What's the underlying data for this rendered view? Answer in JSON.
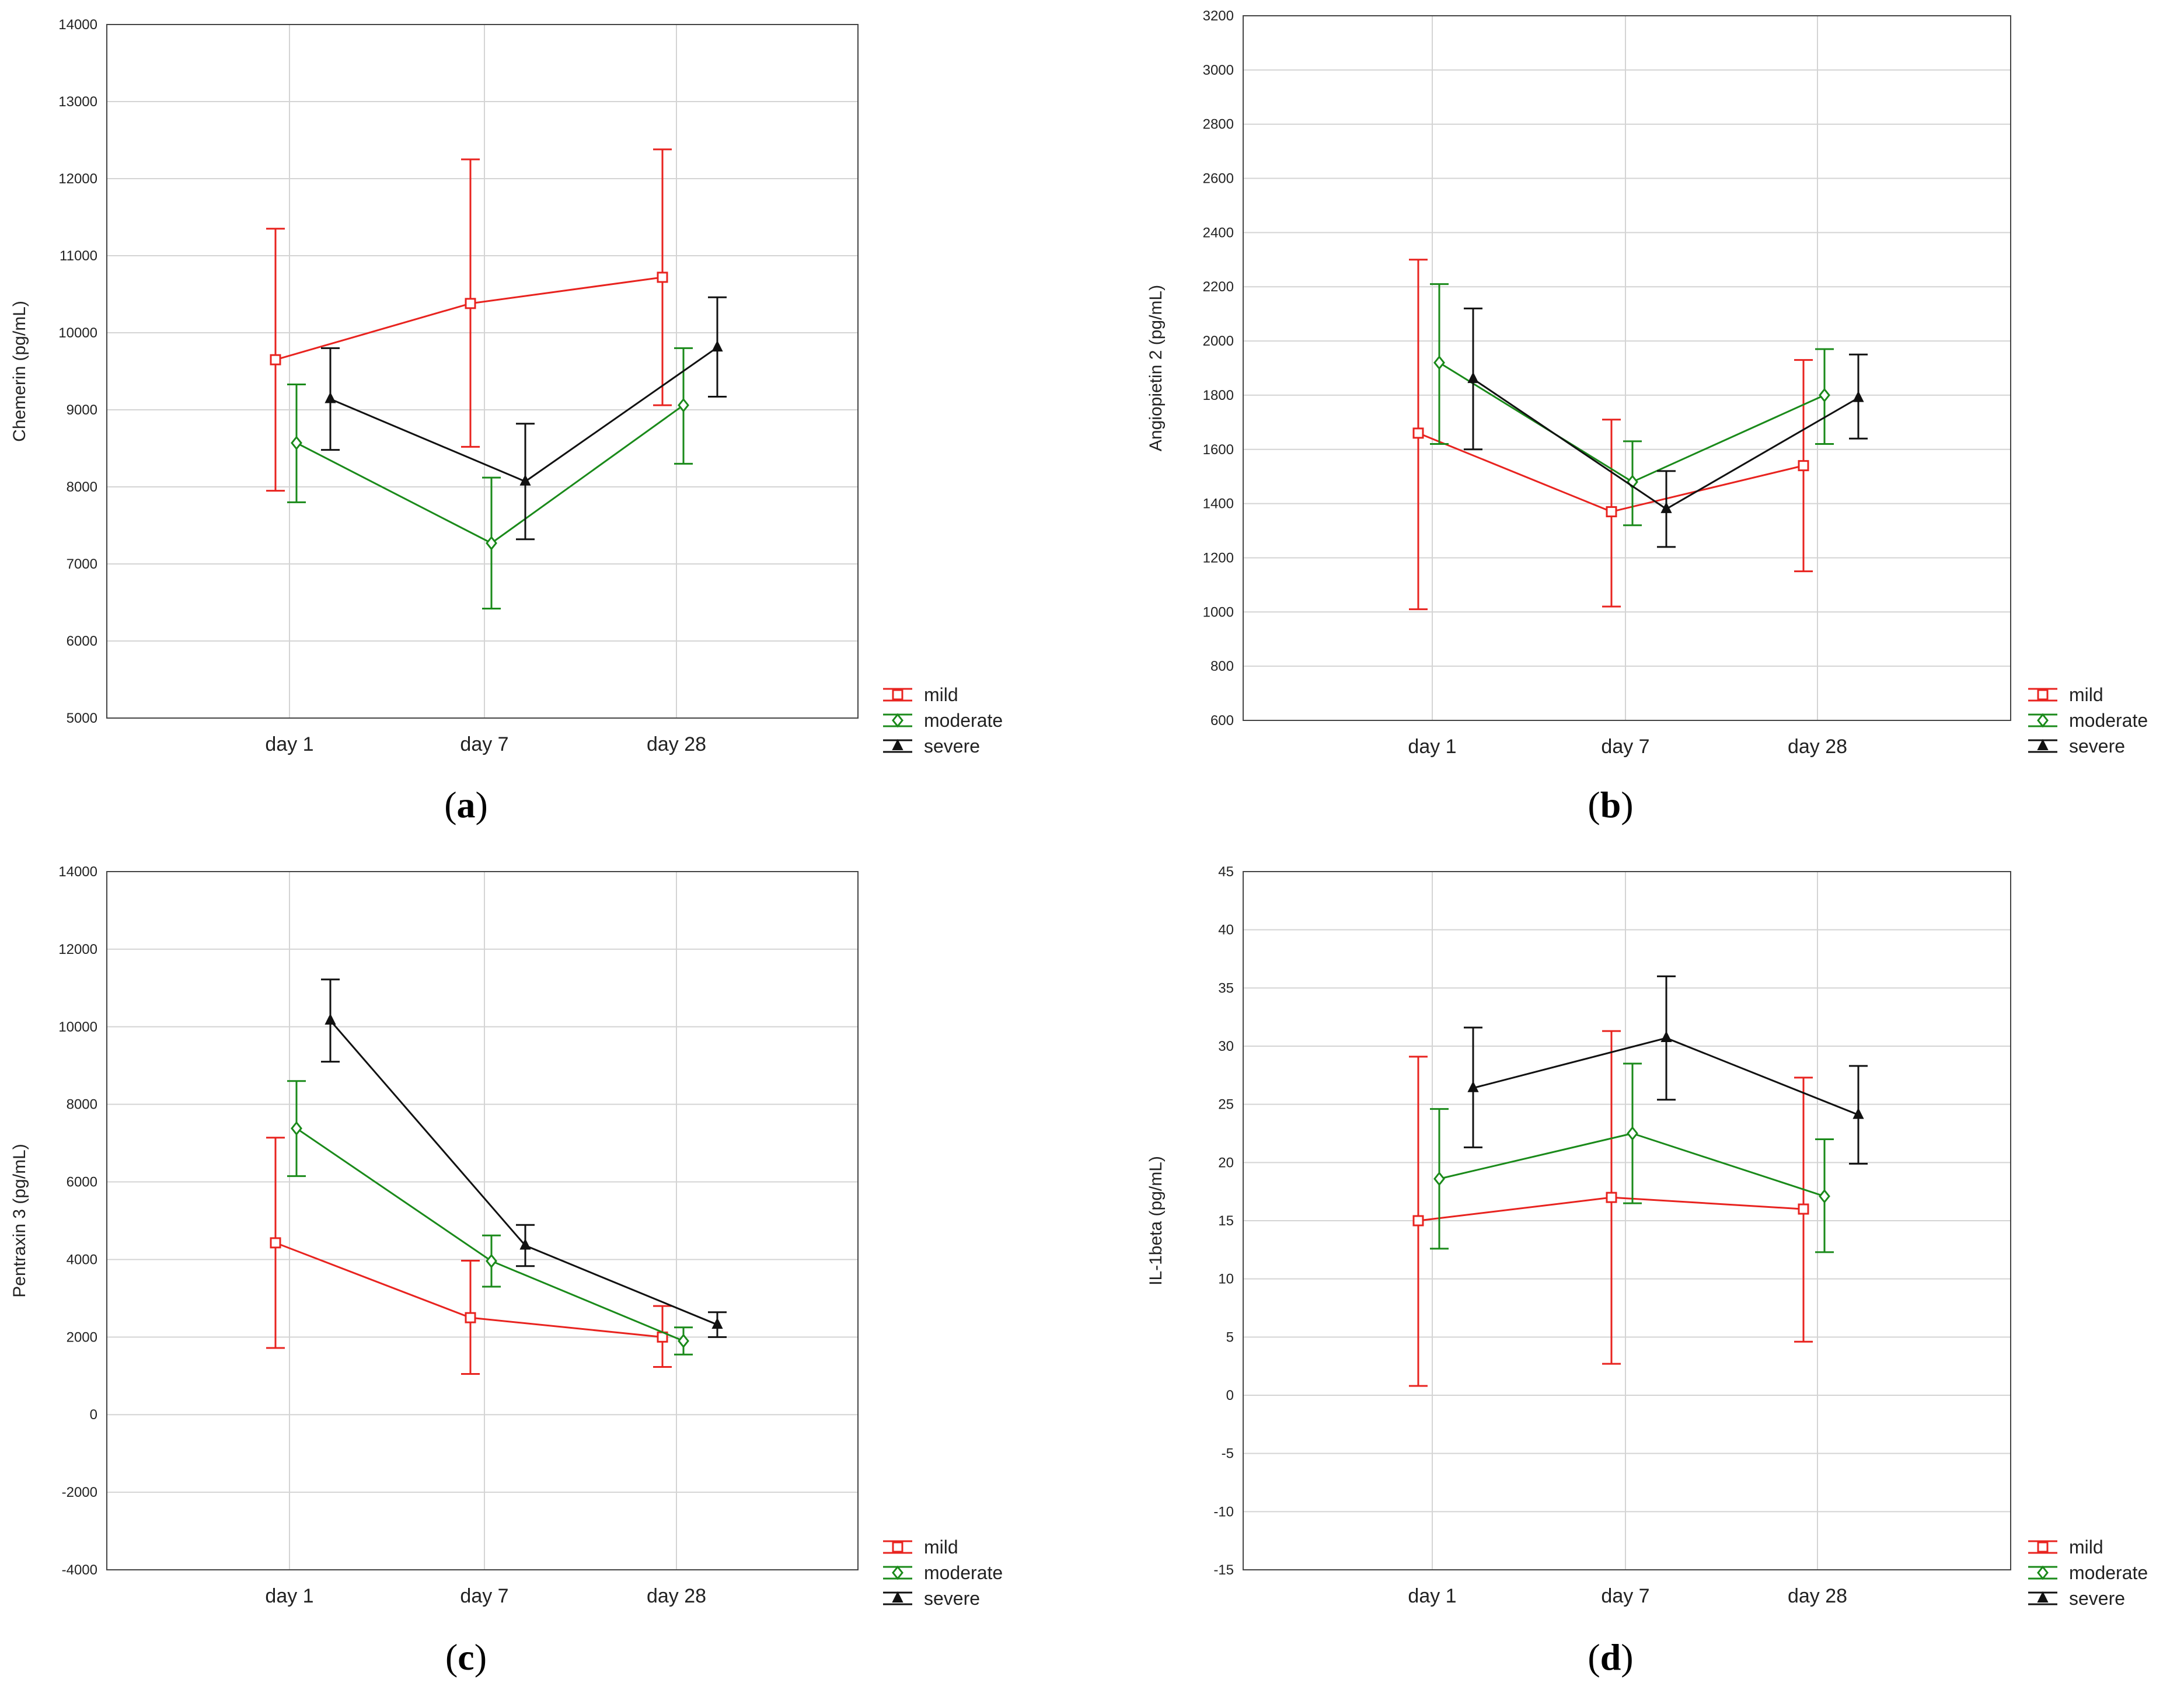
{
  "figure": {
    "panel_letters": [
      "a",
      "b",
      "c",
      "d"
    ]
  },
  "colors": {
    "mild": "#e8231f",
    "moderate": "#1a8a1a",
    "severe": "#111111",
    "grid": "#d4d4d4",
    "frame": "#444444"
  },
  "chart_data": [
    {
      "type": "line",
      "panel": "a",
      "ylabel": "Chemerin (pg/mL)",
      "xlabel": "",
      "categories": [
        "day 1",
        "day 7",
        "day 28"
      ],
      "ylim": [
        5000,
        14000
      ],
      "yticks": [
        5000,
        6000,
        7000,
        8000,
        9000,
        10000,
        11000,
        12000,
        13000,
        14000
      ],
      "grid": true,
      "legend_position": "bottom-right",
      "series": [
        {
          "name": "mild",
          "marker": "square",
          "values": [
            9650,
            10380,
            10720
          ],
          "low": [
            7950,
            8520,
            9060
          ],
          "high": [
            11350,
            12250,
            12380
          ]
        },
        {
          "name": "moderate",
          "marker": "diamond",
          "values": [
            8570,
            7270,
            9060
          ],
          "low": [
            7800,
            6420,
            8300
          ],
          "high": [
            9330,
            8120,
            9800
          ]
        },
        {
          "name": "severe",
          "marker": "triangle",
          "values": [
            9140,
            8070,
            9810
          ],
          "low": [
            8480,
            7320,
            9170
          ],
          "high": [
            9800,
            8820,
            10460
          ]
        }
      ]
    },
    {
      "type": "line",
      "panel": "b",
      "ylabel": "Angiopietin 2 (pg/mL)",
      "xlabel": "",
      "categories": [
        "day 1",
        "day 7",
        "day 28"
      ],
      "ylim": [
        600,
        3200
      ],
      "yticks": [
        600,
        800,
        1000,
        1200,
        1400,
        1600,
        1800,
        2000,
        2200,
        2400,
        2600,
        2800,
        3000,
        3200
      ],
      "grid": true,
      "legend_position": "bottom-right",
      "series": [
        {
          "name": "mild",
          "marker": "square",
          "values": [
            1660,
            1370,
            1540
          ],
          "low": [
            1010,
            1020,
            1150
          ],
          "high": [
            2300,
            1710,
            1930
          ]
        },
        {
          "name": "moderate",
          "marker": "diamond",
          "values": [
            1920,
            1480,
            1800
          ],
          "low": [
            1620,
            1320,
            1620
          ],
          "high": [
            2210,
            1630,
            1970
          ]
        },
        {
          "name": "severe",
          "marker": "triangle",
          "values": [
            1860,
            1380,
            1790
          ],
          "low": [
            1600,
            1240,
            1640
          ],
          "high": [
            2120,
            1520,
            1950
          ]
        }
      ]
    },
    {
      "type": "line",
      "panel": "c",
      "ylabel": "Pentraxin 3 (pg/mL)",
      "xlabel": "",
      "categories": [
        "day 1",
        "day 7",
        "day 28"
      ],
      "ylim": [
        -4000,
        14000
      ],
      "yticks": [
        -4000,
        -2000,
        0,
        2000,
        4000,
        6000,
        8000,
        10000,
        12000,
        14000
      ],
      "grid": true,
      "legend_position": "bottom-right",
      "series": [
        {
          "name": "mild",
          "marker": "square",
          "values": [
            4430,
            2500,
            2000
          ],
          "low": [
            1720,
            1050,
            1230
          ],
          "high": [
            7140,
            3970,
            2800
          ]
        },
        {
          "name": "moderate",
          "marker": "diamond",
          "values": [
            7380,
            3960,
            1900
          ],
          "low": [
            6150,
            3300,
            1550
          ],
          "high": [
            8600,
            4620,
            2250
          ]
        },
        {
          "name": "severe",
          "marker": "triangle",
          "values": [
            10160,
            4360,
            2320
          ],
          "low": [
            9100,
            3830,
            2000
          ],
          "high": [
            11220,
            4890,
            2640
          ]
        }
      ]
    },
    {
      "type": "line",
      "panel": "d",
      "ylabel": "IL-1beta (pg/mL)",
      "xlabel": "",
      "categories": [
        "day 1",
        "day 7",
        "day 28"
      ],
      "ylim": [
        -15,
        45
      ],
      "yticks": [
        -15,
        -10,
        -5,
        0,
        5,
        10,
        15,
        20,
        25,
        30,
        35,
        40,
        45
      ],
      "grid": true,
      "legend_position": "bottom-right",
      "series": [
        {
          "name": "mild",
          "marker": "square",
          "values": [
            15.0,
            17.0,
            16.0
          ],
          "low": [
            0.8,
            2.7,
            4.6
          ],
          "high": [
            29.1,
            31.3,
            27.3
          ]
        },
        {
          "name": "moderate",
          "marker": "diamond",
          "values": [
            18.6,
            22.5,
            17.1
          ],
          "low": [
            12.6,
            16.5,
            12.3
          ],
          "high": [
            24.6,
            28.5,
            22.0
          ]
        },
        {
          "name": "severe",
          "marker": "triangle",
          "values": [
            26.4,
            30.7,
            24.1
          ],
          "low": [
            21.3,
            25.4,
            19.9
          ],
          "high": [
            31.6,
            36.0,
            28.3
          ]
        }
      ]
    }
  ]
}
